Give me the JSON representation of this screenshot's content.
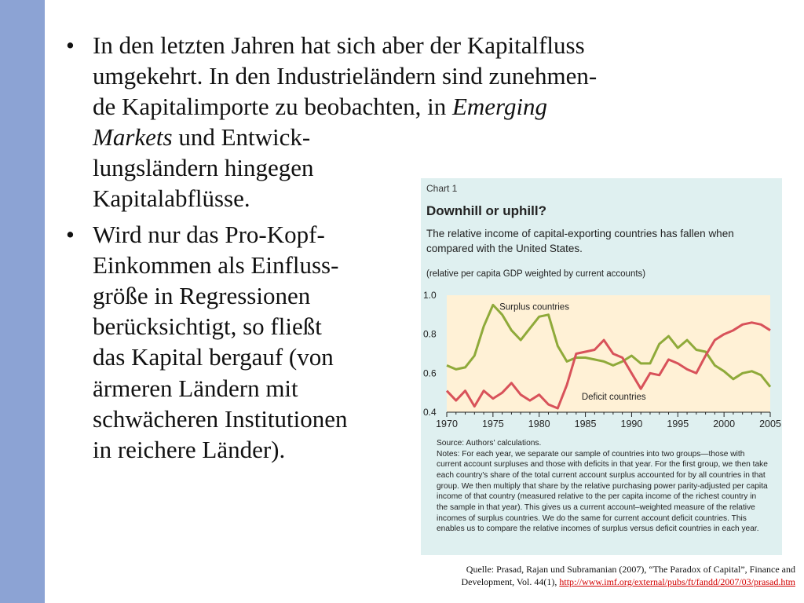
{
  "slide": {
    "bullets": [
      {
        "marker": "•",
        "parts": [
          {
            "text": "In den letzten Jahren hat sich aber der Kapitalfluss",
            "br": true
          },
          {
            "text": "umgekehrt. In den Industrieländern sind zunehmen-",
            "br": true
          },
          {
            "text": "de Kapitalimporte zu beobachten, in "
          },
          {
            "text": "Emerging",
            "italic": true,
            "br": true
          },
          {
            "text": "Markets",
            "italic": true
          },
          {
            "text": " und Entwick-",
            "br": true
          },
          {
            "text": "lungsländern hingegen",
            "br": true
          },
          {
            "text": "Kapitalabflüsse."
          }
        ]
      },
      {
        "marker": "•",
        "parts": [
          {
            "text": "Wird nur das Pro-Kopf-",
            "br": true
          },
          {
            "text": "Einkommen als Einfluss-",
            "br": true
          },
          {
            "text": "größe in Regressionen",
            "br": true
          },
          {
            "text": "berücksichtigt, so fließt",
            "br": true
          },
          {
            "text": "das Kapital bergauf (von",
            "br": true
          },
          {
            "text": "ärmeren Ländern mit",
            "br": true
          },
          {
            "text": "schwächeren Institutionen",
            "br": true
          },
          {
            "text": "in reichere Länder)."
          }
        ]
      }
    ],
    "citation": {
      "line1": "Quelle: Prasad, Rajan und Subramanian (2007), “The Paradox of Capital”, Finance and",
      "line2": "Development, Vol. 44(1), ",
      "url": "http://www.imf.org/external/pubs/ft/fandd/2007/03/prasad.htm"
    }
  },
  "chart_data": {
    "type": "line",
    "chart_label": "Chart 1",
    "title": "Downhill or uphill?",
    "subtitle": "The relative income of capital-exporting countries has fallen when compared with the United States.",
    "note": "(relative per capita GDP weighted by current accounts)",
    "xlim": [
      1970,
      2005
    ],
    "ylim": [
      0.4,
      1.0
    ],
    "x_ticks": [
      1970,
      1975,
      1980,
      1985,
      1990,
      1995,
      2000,
      2005
    ],
    "y_ticks": [
      "0.4",
      "0.6",
      "0.8",
      "1.0"
    ],
    "grid": false,
    "plot_background": "#fff1d6",
    "x": [
      1970,
      1971,
      1972,
      1973,
      1974,
      1975,
      1976,
      1977,
      1978,
      1979,
      1980,
      1981,
      1982,
      1983,
      1984,
      1985,
      1986,
      1987,
      1988,
      1989,
      1990,
      1991,
      1992,
      1993,
      1994,
      1995,
      1996,
      1997,
      1998,
      1999,
      2000,
      2001,
      2002,
      2003,
      2004,
      2005
    ],
    "series": [
      {
        "name": "Surplus countries",
        "color": "#8faa3a",
        "values": [
          0.64,
          0.62,
          0.63,
          0.69,
          0.84,
          0.95,
          0.9,
          0.82,
          0.77,
          0.83,
          0.89,
          0.9,
          0.74,
          0.66,
          0.68,
          0.68,
          0.67,
          0.66,
          0.64,
          0.66,
          0.69,
          0.65,
          0.65,
          0.75,
          0.79,
          0.73,
          0.77,
          0.72,
          0.71,
          0.64,
          0.61,
          0.57,
          0.6,
          0.61,
          0.59,
          0.53
        ]
      },
      {
        "name": "Deficit countries",
        "color": "#d8525a",
        "values": [
          0.51,
          0.46,
          0.51,
          0.43,
          0.51,
          0.47,
          0.5,
          0.55,
          0.49,
          0.46,
          0.49,
          0.44,
          0.42,
          0.54,
          0.7,
          0.71,
          0.72,
          0.77,
          0.7,
          0.68,
          0.6,
          0.52,
          0.6,
          0.59,
          0.67,
          0.65,
          0.62,
          0.6,
          0.69,
          0.77,
          0.8,
          0.82,
          0.85,
          0.86,
          0.85,
          0.82
        ]
      }
    ],
    "source_lines": [
      "Source: Authors' calculations.",
      "Notes: For each year, we separate our sample of countries into two groups—those with",
      "current account surpluses and those with deficits in that year. For the first group, we then take",
      "each country's share of the total current account surplus accounted for by all countries in that",
      "group. We then multiply that share by the relative purchasing power parity-adjusted per capita",
      "income of that country (measured relative to the per capita income of the richest country in",
      "the sample in that year). This gives us a current account–weighted measure of the relative",
      "incomes of surplus countries. We do the same for current account deficit countries. This",
      "enables us to compare the relative incomes of surplus versus deficit countries in each year."
    ]
  }
}
